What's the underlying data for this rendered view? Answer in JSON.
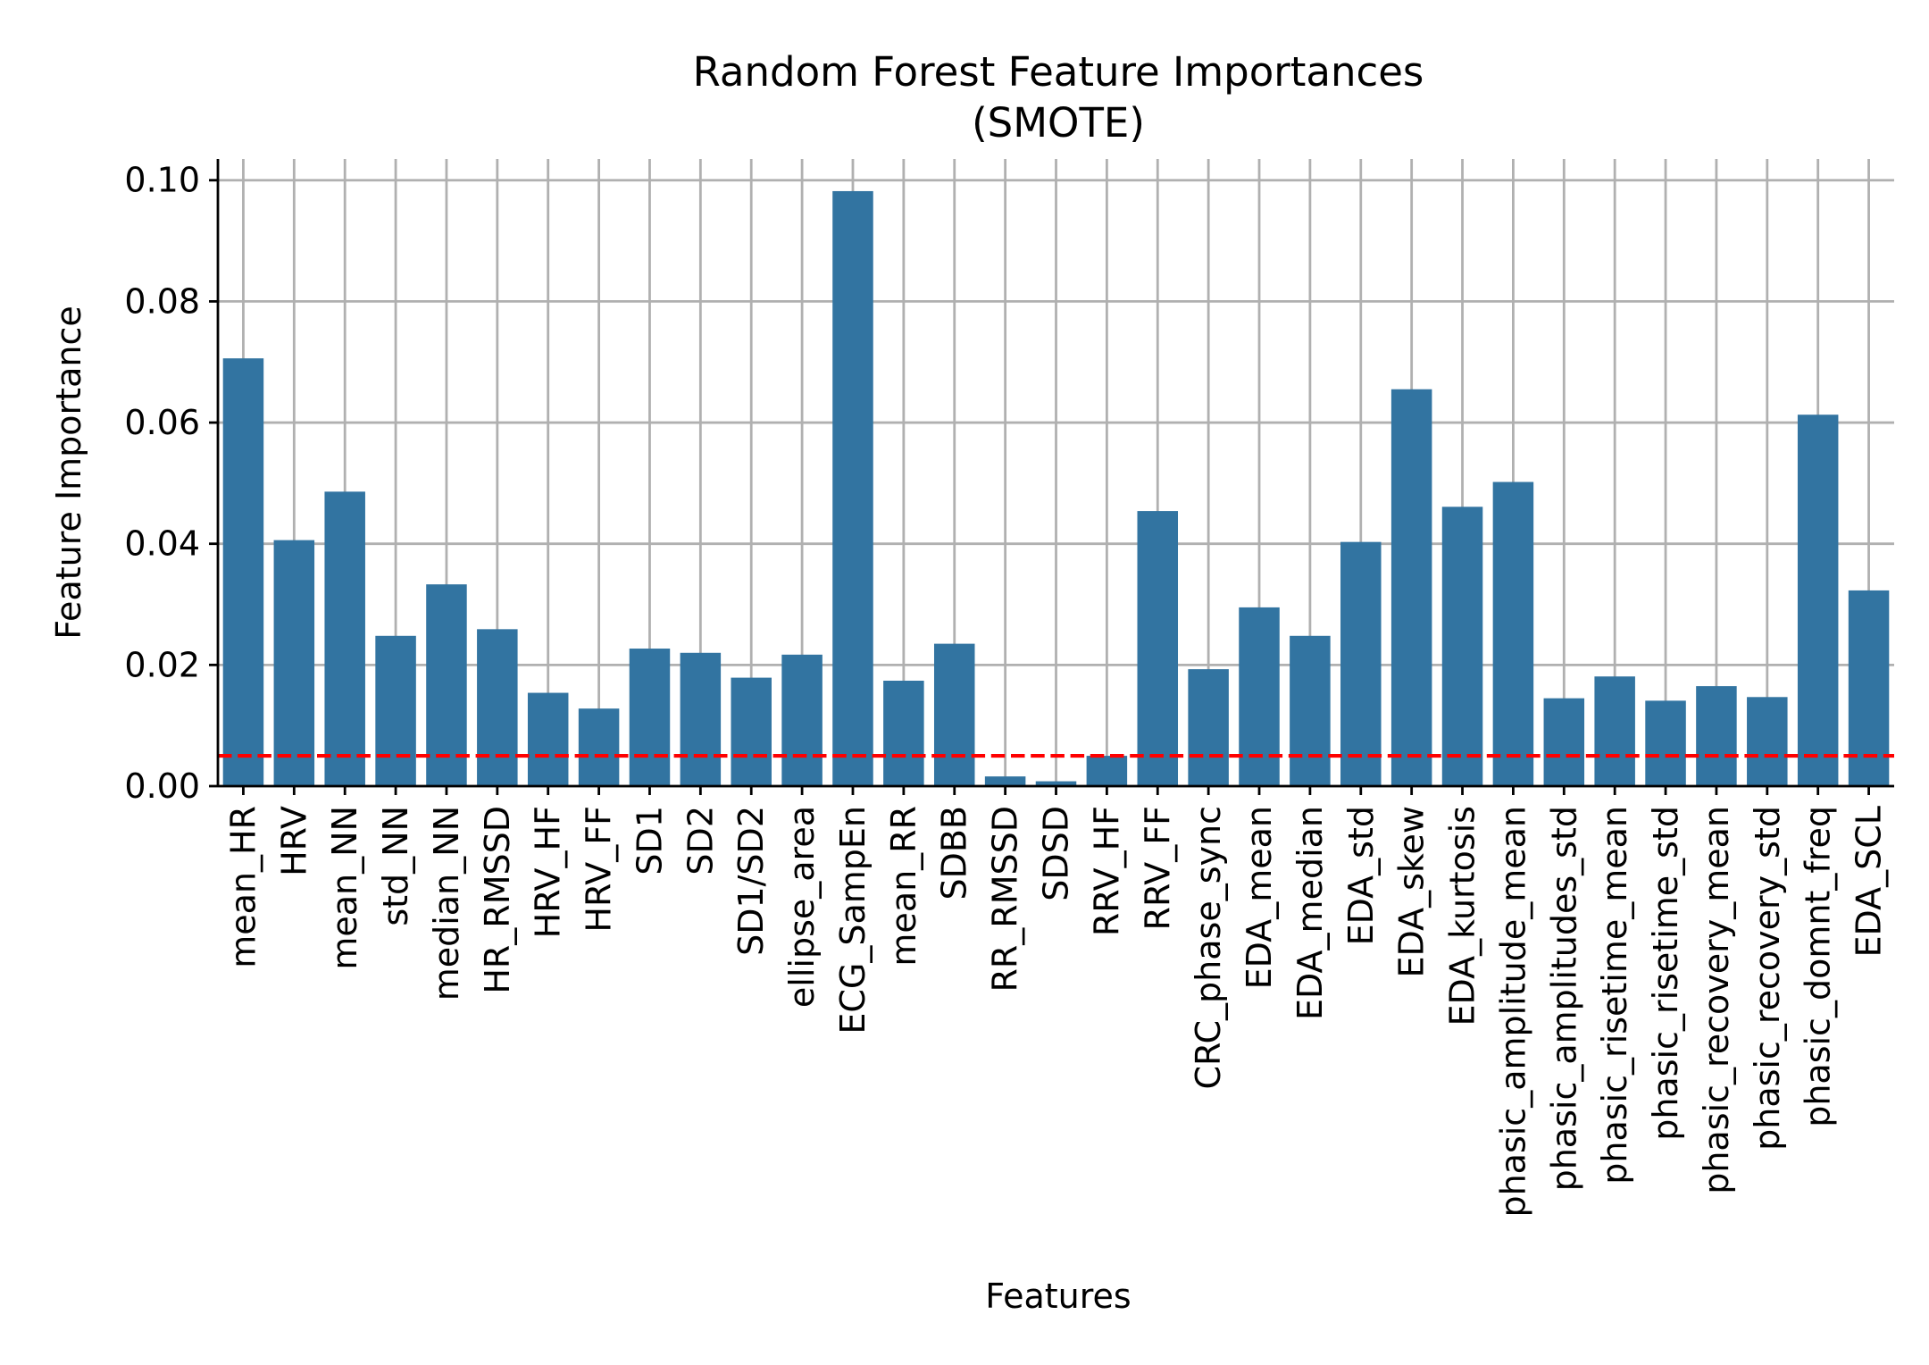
{
  "chart_data": {
    "type": "bar",
    "title": "Random Forest Feature Importances",
    "subtitle": "(SMOTE)",
    "xlabel": "Features",
    "ylabel": "Feature Importance",
    "ylim": [
      0,
      0.1035
    ],
    "yticks": [
      0.0,
      0.02,
      0.04,
      0.06,
      0.08,
      0.1
    ],
    "ytick_labels": [
      "0.00",
      "0.02",
      "0.04",
      "0.06",
      "0.08",
      "0.10"
    ],
    "grid": true,
    "bar_color": "#3274a1",
    "threshold": {
      "value": 0.005,
      "color": "#ff0000",
      "style": "dashed"
    },
    "categories": [
      "mean_HR",
      "HRV",
      "mean_NN",
      "std_NN",
      "median_NN",
      "HR_RMSSD",
      "HRV_HF",
      "HRV_FF",
      "SD1",
      "SD2",
      "SD1/SD2",
      "ellipse_area",
      "ECG_SampEn",
      "mean_RR",
      "SDBB",
      "RR_RMSSD",
      "SDSD",
      "RRV_HF",
      "RRV_FF",
      "CRC_phase_sync",
      "EDA_mean",
      "EDA_median",
      "EDA_std",
      "EDA_skew",
      "EDA_kurtosis",
      "phasic_amplitude_mean",
      "phasic_amplitudes_std",
      "phasic_risetime_mean",
      "phasic_risetime_std",
      "phasic_recovery_mean",
      "phasic_recovery_std",
      "phasic_domnt_freq",
      "EDA_SCL"
    ],
    "values": [
      0.0706,
      0.0406,
      0.0486,
      0.0248,
      0.0333,
      0.0259,
      0.0154,
      0.0128,
      0.0227,
      0.022,
      0.0179,
      0.0217,
      0.0982,
      0.0174,
      0.0235,
      0.0016,
      0.0008,
      0.005,
      0.0454,
      0.0193,
      0.0295,
      0.0248,
      0.0403,
      0.0655,
      0.0461,
      0.0502,
      0.0145,
      0.0181,
      0.0141,
      0.0165,
      0.0147,
      0.0613,
      0.0323
    ]
  }
}
